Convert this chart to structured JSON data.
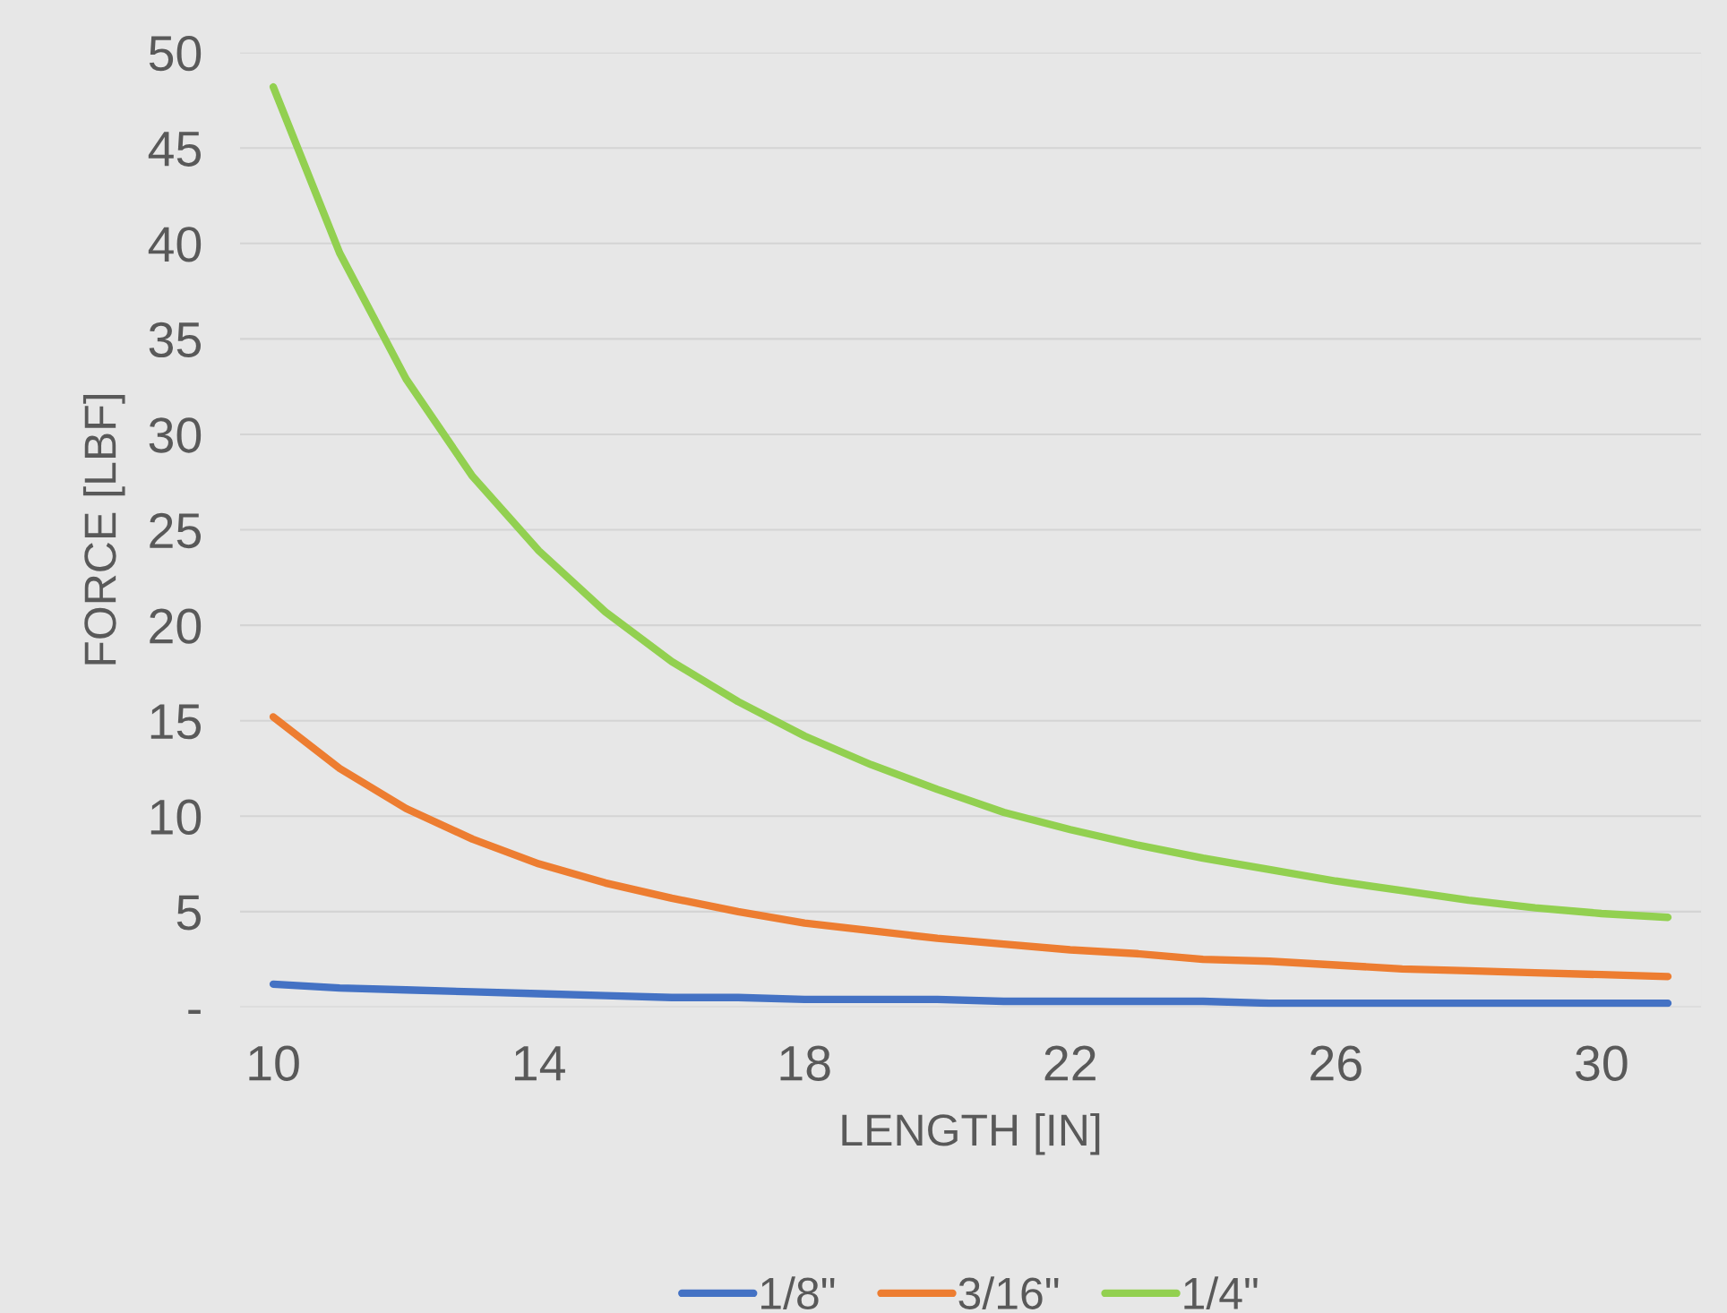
{
  "chart_data": {
    "type": "line",
    "xlabel": "LENGTH [IN]",
    "ylabel": "FORCE [LBF]",
    "categories": [
      "10",
      null,
      null,
      null,
      "14",
      null,
      null,
      null,
      "18",
      null,
      null,
      null,
      "22",
      null,
      null,
      null,
      "26",
      null,
      null,
      null,
      "30",
      null
    ],
    "series": [
      {
        "name": "1/8\"",
        "color": "#4472c4",
        "values": [
          1.2,
          1.0,
          0.9,
          0.8,
          0.7,
          0.6,
          0.5,
          0.5,
          0.4,
          0.4,
          0.4,
          0.3,
          0.3,
          0.3,
          0.3,
          0.2,
          0.2,
          0.2,
          0.2,
          0.2,
          0.2,
          0.2
        ]
      },
      {
        "name": "3/16\"",
        "color": "#ed7d31",
        "values": [
          15.2,
          12.5,
          10.4,
          8.8,
          7.5,
          6.5,
          5.7,
          5.0,
          4.4,
          4.0,
          3.6,
          3.3,
          3.0,
          2.8,
          2.5,
          2.4,
          2.2,
          2.0,
          1.9,
          1.8,
          1.7,
          1.6
        ]
      },
      {
        "name": "1/4\"",
        "color": "#92d050",
        "values": [
          48.2,
          39.5,
          32.9,
          27.8,
          23.9,
          20.7,
          18.1,
          16.0,
          14.2,
          12.7,
          11.4,
          10.2,
          9.3,
          8.5,
          7.8,
          7.2,
          6.6,
          6.1,
          5.6,
          5.2,
          4.9,
          4.7
        ]
      }
    ],
    "ylim": [
      0,
      50
    ],
    "yticks": [
      {
        "value": 0,
        "label": "-"
      },
      5,
      10,
      15,
      20,
      25,
      30,
      35,
      40,
      45,
      50
    ],
    "grid": "y",
    "legend": "bottom",
    "marker": "none",
    "line_style": "solid"
  }
}
